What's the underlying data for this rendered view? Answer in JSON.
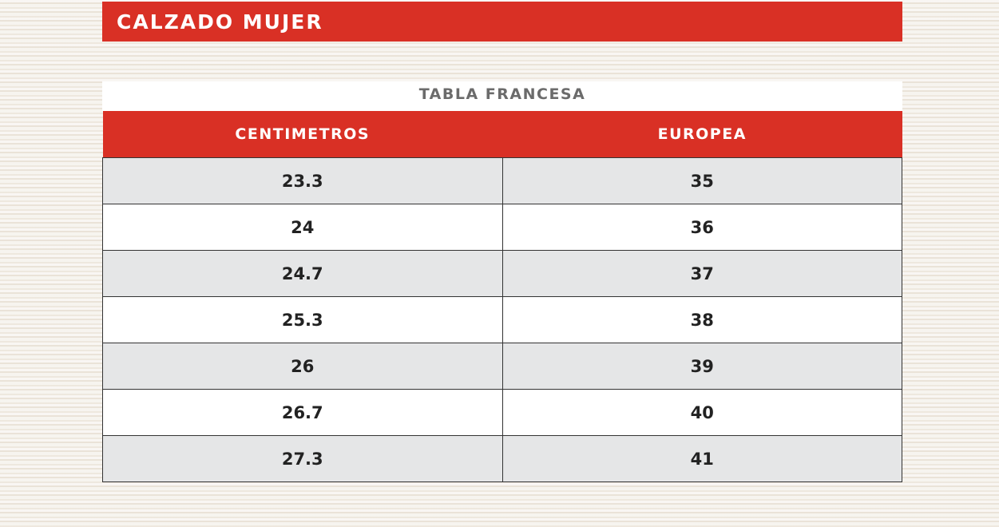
{
  "banner": {
    "title": "CALZADO MUJER"
  },
  "table": {
    "title": "TABLA FRANCESA",
    "headers": [
      "CENTIMETROS",
      "EUROPEA"
    ],
    "rows": [
      [
        "23.3",
        "35"
      ],
      [
        "24",
        "36"
      ],
      [
        "24.7",
        "37"
      ],
      [
        "25.3",
        "38"
      ],
      [
        "26",
        "39"
      ],
      [
        "26.7",
        "40"
      ],
      [
        "27.3",
        "41"
      ]
    ]
  },
  "colors": {
    "accent": "#d93025",
    "row_alt": "#e5e6e7"
  }
}
